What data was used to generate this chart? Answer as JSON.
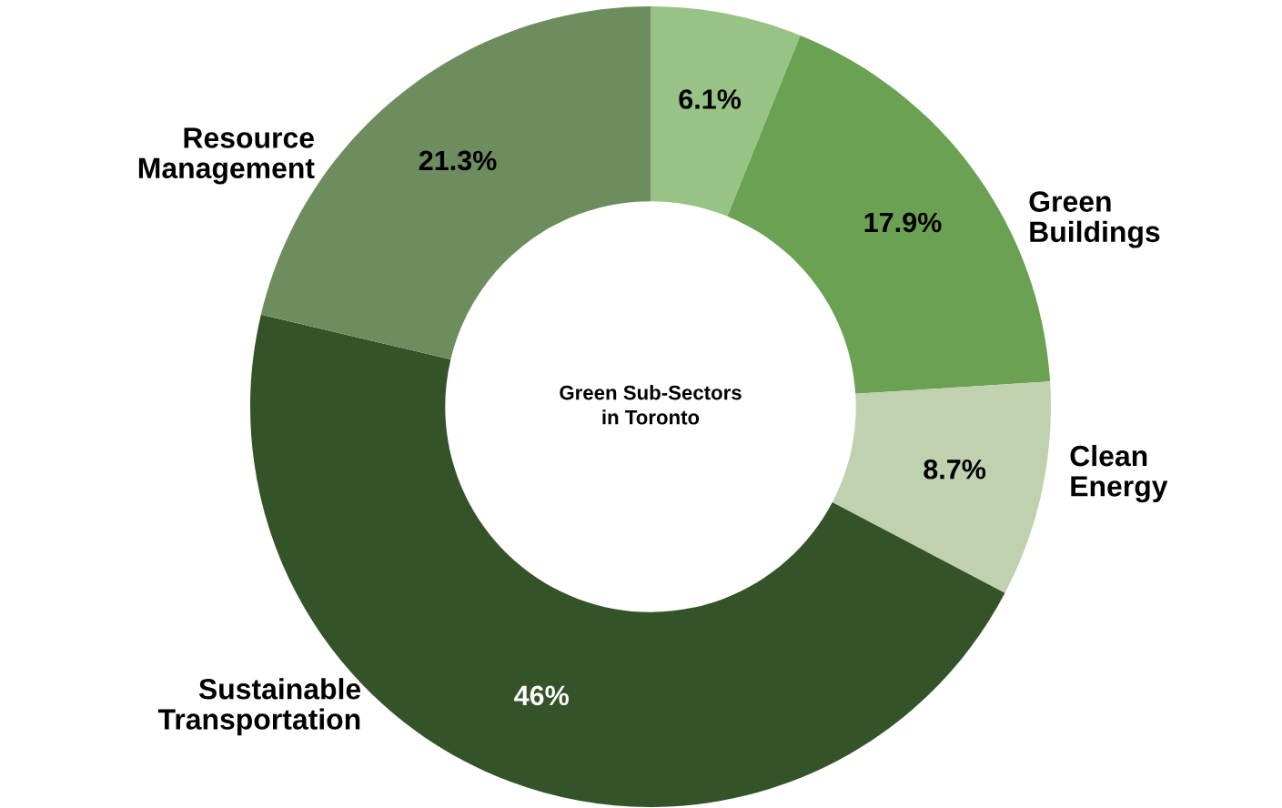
{
  "chart_data": {
    "type": "donut",
    "title": "Green Sub-Sectors\nin Toronto",
    "categories": [
      null,
      "Green\nBuildings",
      "Clean\nEnergy",
      "Sustainable\nTransportation",
      "Resource\nManagement"
    ],
    "values": [
      6.1,
      17.9,
      8.7,
      46,
      21.3
    ],
    "value_labels": [
      "6.1%",
      "17.9%",
      "8.7%",
      "46%",
      "21.3%"
    ],
    "colors": [
      "#98c387",
      "#6aa153",
      "#bfd1ae",
      "#345329",
      "#6e8d5f"
    ],
    "legend": false
  }
}
